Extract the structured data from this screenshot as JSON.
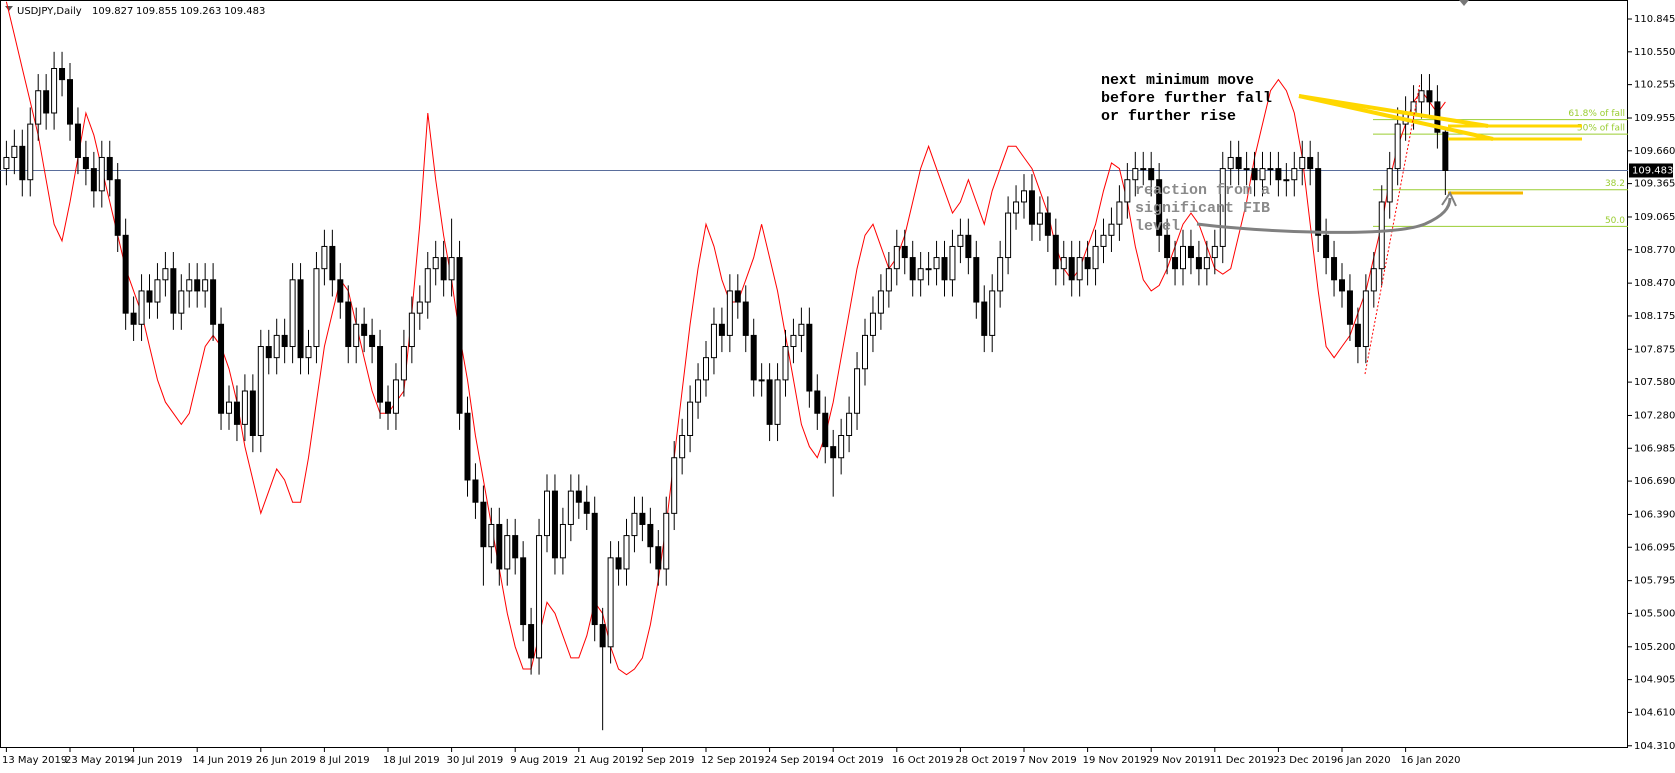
{
  "chart_data": {
    "type": "candlestick",
    "title": "USDJPY,Daily",
    "categories": [
      "13 May 2019",
      null,
      null,
      null,
      null,
      null,
      null,
      null,
      "23 May 2019",
      null,
      null,
      null,
      null,
      null,
      null,
      null,
      "4 Jun 2019",
      null,
      null,
      null,
      null,
      null,
      null,
      null,
      "14 Jun 2019",
      null,
      null,
      null,
      null,
      null,
      null,
      null,
      "26 Jun 2019",
      null,
      null,
      null,
      null,
      null,
      null,
      null,
      "8 Jul 2019",
      null,
      null,
      null,
      null,
      null,
      null,
      null,
      "18 Jul 2019",
      null,
      null,
      null,
      null,
      null,
      null,
      null,
      "30 Jul 2019",
      null,
      null,
      null,
      null,
      null,
      null,
      null,
      "9 Aug 2019",
      null,
      null,
      null,
      null,
      null,
      null,
      null,
      "21 Aug 2019",
      null,
      null,
      null,
      null,
      null,
      null,
      null,
      "2 Sep 2019",
      null,
      null,
      null,
      null,
      null,
      null,
      null,
      "12 Sep 2019",
      null,
      null,
      null,
      null,
      null,
      null,
      null,
      "24 Sep 2019",
      null,
      null,
      null,
      null,
      null,
      null,
      null,
      "4 Oct 2019",
      null,
      null,
      null,
      null,
      null,
      null,
      null,
      "16 Oct 2019",
      null,
      null,
      null,
      null,
      null,
      null,
      null,
      "28 Oct 2019",
      null,
      null,
      null,
      null,
      null,
      null,
      null,
      "7 Nov 2019",
      null,
      null,
      null,
      null,
      null,
      null,
      null,
      "19 Nov 2019",
      null,
      null,
      null,
      null,
      null,
      null,
      null,
      "29 Nov 2019",
      null,
      null,
      null,
      null,
      null,
      null,
      null,
      "11 Dec 2019",
      null,
      null,
      null,
      null,
      null,
      null,
      null,
      "23 Dec 2019",
      null,
      null,
      null,
      null,
      null,
      null,
      null,
      "6 Jan 2020",
      null,
      null,
      null,
      null,
      null,
      null,
      null,
      "16 Jan 2020",
      null,
      null,
      null,
      null,
      null
    ],
    "open": [
      109.5,
      109.6,
      109.7,
      109.4,
      109.9,
      110.2,
      110.0,
      110.4,
      110.3,
      109.9,
      109.6,
      109.5,
      109.3,
      109.6,
      109.4,
      108.9,
      108.2,
      108.1,
      108.4,
      108.3,
      108.5,
      108.6,
      108.2,
      108.4,
      108.5,
      108.4,
      108.5,
      108.1,
      107.3,
      107.4,
      107.2,
      107.5,
      107.1,
      107.9,
      107.8,
      108.0,
      107.9,
      108.5,
      107.8,
      107.9,
      108.6,
      108.8,
      108.5,
      108.3,
      107.9,
      108.1,
      108.0,
      107.9,
      107.4,
      107.3,
      107.6,
      107.9,
      108.2,
      108.3,
      108.6,
      108.7,
      108.5,
      108.7,
      107.3,
      106.7,
      106.5,
      106.1,
      106.3,
      105.9,
      106.2,
      106.0,
      105.4,
      105.1,
      106.2,
      106.6,
      106.0,
      106.3,
      106.6,
      106.5,
      106.4,
      105.4,
      105.2,
      106.0,
      105.9,
      106.2,
      106.4,
      106.3,
      106.1,
      105.9,
      106.4,
      106.9,
      107.1,
      107.4,
      107.6,
      107.8,
      108.1,
      108.0,
      108.4,
      108.3,
      108.0,
      107.6,
      107.6,
      107.2,
      107.6,
      107.9,
      108.0,
      108.1,
      107.5,
      107.3,
      107.0,
      106.9,
      107.1,
      107.3,
      107.7,
      108.0,
      108.2,
      108.4,
      108.6,
      108.8,
      108.7,
      108.5,
      108.6,
      108.6,
      108.7,
      108.5,
      108.8,
      108.9,
      108.7,
      108.3,
      108.0,
      108.4,
      108.7,
      109.1,
      109.2,
      109.3,
      109.0,
      109.1,
      108.9,
      108.6,
      108.7,
      108.5,
      108.7,
      108.6,
      108.8,
      108.9,
      109.0,
      109.2,
      109.4,
      109.5,
      109.5,
      109.4,
      108.9,
      108.7,
      108.6,
      108.8,
      108.7,
      108.6,
      108.7,
      108.8,
      109.5,
      109.6,
      109.5,
      109.5,
      109.4,
      109.5,
      109.5,
      109.4,
      109.4,
      109.5,
      109.6,
      109.5,
      108.9,
      108.7,
      108.5,
      108.4,
      108.1,
      107.9,
      108.4,
      108.6,
      109.2,
      109.5,
      109.9,
      110.0,
      110.1,
      110.2,
      110.1,
      109.827
    ],
    "high": [
      109.75,
      109.85,
      109.85,
      110.05,
      110.35,
      110.35,
      110.55,
      110.55,
      110.45,
      110.05,
      109.75,
      109.65,
      109.75,
      109.75,
      109.55,
      109.05,
      108.35,
      108.55,
      108.55,
      108.65,
      108.75,
      108.75,
      108.55,
      108.65,
      108.65,
      108.65,
      108.65,
      108.25,
      107.55,
      107.55,
      107.65,
      107.65,
      108.05,
      108.05,
      108.15,
      108.15,
      108.65,
      108.65,
      108.05,
      108.75,
      108.95,
      108.95,
      108.65,
      108.45,
      108.25,
      108.25,
      108.15,
      108.05,
      107.55,
      107.75,
      108.05,
      108.35,
      108.45,
      108.75,
      108.85,
      108.85,
      109.05,
      108.85,
      107.45,
      106.85,
      106.65,
      106.45,
      106.45,
      106.35,
      106.35,
      106.15,
      105.55,
      106.35,
      106.75,
      106.75,
      106.45,
      106.75,
      106.75,
      106.65,
      106.55,
      105.55,
      106.15,
      106.15,
      106.35,
      106.55,
      106.55,
      106.45,
      106.25,
      106.55,
      107.05,
      107.25,
      107.55,
      107.75,
      107.95,
      108.25,
      108.25,
      108.55,
      108.55,
      108.45,
      108.15,
      107.75,
      107.75,
      107.75,
      108.05,
      108.15,
      108.25,
      108.25,
      107.65,
      107.45,
      107.15,
      107.25,
      107.45,
      107.85,
      108.15,
      108.35,
      108.55,
      108.75,
      108.95,
      108.95,
      108.85,
      108.75,
      108.75,
      108.85,
      108.85,
      108.95,
      109.05,
      109.05,
      108.85,
      108.45,
      108.55,
      108.85,
      109.25,
      109.35,
      109.45,
      109.45,
      109.25,
      109.25,
      109.05,
      108.85,
      108.85,
      108.85,
      108.85,
      108.95,
      109.05,
      109.15,
      109.35,
      109.55,
      109.65,
      109.65,
      109.65,
      109.55,
      109.05,
      108.85,
      108.95,
      108.95,
      108.85,
      108.85,
      108.95,
      109.65,
      109.75,
      109.75,
      109.65,
      109.65,
      109.65,
      109.65,
      109.65,
      109.55,
      109.65,
      109.75,
      109.75,
      109.65,
      109.05,
      108.85,
      108.65,
      108.55,
      108.25,
      108.55,
      108.75,
      109.35,
      109.65,
      110.05,
      110.15,
      110.25,
      110.35,
      110.35,
      110.25,
      109.855
    ],
    "low": [
      109.35,
      109.45,
      109.25,
      109.25,
      109.75,
      109.85,
      109.85,
      110.15,
      109.75,
      109.45,
      109.35,
      109.15,
      109.15,
      109.25,
      108.75,
      108.05,
      107.95,
      107.95,
      108.15,
      108.15,
      108.35,
      108.05,
      108.05,
      108.25,
      108.25,
      108.25,
      107.95,
      107.15,
      107.15,
      107.05,
      107.05,
      106.95,
      106.95,
      107.65,
      107.65,
      107.75,
      107.75,
      107.65,
      107.65,
      107.75,
      108.45,
      108.35,
      108.15,
      107.75,
      107.75,
      107.85,
      107.75,
      107.25,
      107.15,
      107.15,
      107.45,
      107.75,
      108.05,
      108.15,
      108.45,
      108.35,
      108.35,
      107.15,
      106.55,
      106.35,
      105.75,
      105.95,
      105.75,
      105.75,
      105.85,
      105.25,
      104.95,
      104.95,
      106.05,
      105.85,
      105.85,
      106.15,
      106.35,
      106.25,
      105.25,
      104.45,
      105.05,
      105.75,
      105.75,
      106.05,
      106.15,
      105.95,
      105.75,
      105.75,
      106.25,
      106.75,
      106.95,
      107.25,
      107.45,
      107.65,
      107.85,
      107.85,
      108.15,
      107.85,
      107.45,
      107.45,
      107.05,
      107.05,
      107.45,
      107.75,
      107.85,
      107.35,
      107.15,
      106.85,
      106.55,
      106.75,
      106.95,
      107.15,
      107.55,
      107.85,
      108.05,
      108.25,
      108.45,
      108.55,
      108.35,
      108.35,
      108.45,
      108.45,
      108.35,
      108.35,
      108.65,
      108.55,
      108.15,
      107.85,
      107.85,
      108.25,
      108.55,
      108.95,
      109.05,
      108.85,
      108.85,
      108.75,
      108.45,
      108.45,
      108.35,
      108.35,
      108.45,
      108.45,
      108.65,
      108.75,
      108.85,
      109.05,
      109.25,
      109.35,
      109.25,
      108.75,
      108.55,
      108.45,
      108.45,
      108.55,
      108.45,
      108.45,
      108.55,
      108.65,
      109.35,
      109.35,
      109.35,
      109.25,
      109.25,
      109.35,
      109.25,
      109.25,
      109.25,
      109.35,
      109.35,
      108.75,
      108.55,
      108.35,
      108.25,
      107.95,
      107.75,
      107.75,
      108.25,
      108.45,
      109.05,
      109.35,
      109.75,
      109.85,
      109.95,
      109.95,
      109.68,
      109.263
    ],
    "close": [
      109.6,
      109.7,
      109.4,
      109.9,
      110.2,
      110.0,
      110.4,
      110.3,
      109.9,
      109.6,
      109.5,
      109.3,
      109.6,
      109.4,
      108.9,
      108.2,
      108.1,
      108.4,
      108.3,
      108.5,
      108.6,
      108.2,
      108.4,
      108.5,
      108.4,
      108.5,
      108.1,
      107.3,
      107.4,
      107.2,
      107.5,
      107.1,
      107.9,
      107.8,
      108.0,
      107.9,
      108.5,
      107.8,
      107.9,
      108.6,
      108.8,
      108.5,
      108.3,
      107.9,
      108.1,
      108.0,
      107.9,
      107.4,
      107.3,
      107.6,
      107.9,
      108.2,
      108.3,
      108.6,
      108.7,
      108.5,
      108.7,
      107.3,
      106.7,
      106.5,
      106.1,
      106.3,
      105.9,
      106.2,
      106.0,
      105.4,
      105.1,
      106.2,
      106.6,
      106.0,
      106.3,
      106.6,
      106.5,
      106.4,
      105.4,
      105.2,
      106.0,
      105.9,
      106.2,
      106.4,
      106.3,
      106.1,
      105.9,
      106.4,
      106.9,
      107.1,
      107.4,
      107.6,
      107.8,
      108.1,
      108.0,
      108.4,
      108.3,
      108.0,
      107.6,
      107.6,
      107.2,
      107.6,
      107.9,
      108.0,
      108.1,
      107.5,
      107.3,
      107.0,
      106.9,
      107.1,
      107.3,
      107.7,
      108.0,
      108.2,
      108.4,
      108.6,
      108.8,
      108.7,
      108.5,
      108.6,
      108.6,
      108.7,
      108.5,
      108.8,
      108.9,
      108.7,
      108.3,
      108.0,
      108.4,
      108.7,
      109.1,
      109.2,
      109.3,
      109.0,
      109.1,
      108.9,
      108.6,
      108.7,
      108.5,
      108.7,
      108.6,
      108.8,
      108.9,
      109.0,
      109.2,
      109.4,
      109.5,
      109.5,
      109.4,
      108.9,
      108.7,
      108.6,
      108.8,
      108.7,
      108.6,
      108.7,
      108.8,
      109.5,
      109.6,
      109.5,
      109.5,
      109.4,
      109.5,
      109.5,
      109.4,
      109.4,
      109.5,
      109.6,
      109.5,
      108.9,
      108.7,
      108.5,
      108.4,
      108.1,
      107.9,
      108.4,
      108.6,
      109.2,
      109.5,
      109.9,
      110.0,
      110.1,
      110.2,
      110.1,
      109.827,
      109.483
    ],
    "up_color": "#ffffff",
    "down_color": "#000000",
    "wick_color": "#000000",
    "series": [
      {
        "color": "#ff0000",
        "values": [
          111.0,
          110.7,
          110.4,
          110.1,
          109.8,
          109.4,
          109.0,
          108.85,
          109.2,
          109.6,
          110.0,
          109.8,
          109.5,
          109.2,
          108.9,
          108.6,
          108.4,
          108.2,
          107.9,
          107.6,
          107.4,
          107.3,
          107.2,
          107.3,
          107.6,
          107.9,
          108.0,
          107.9,
          107.7,
          107.4,
          107.0,
          106.7,
          106.4,
          106.6,
          106.8,
          106.7,
          106.5,
          106.5,
          106.9,
          107.4,
          107.9,
          108.2,
          108.5,
          108.4,
          108.1,
          107.8,
          107.5,
          107.3,
          107.3,
          107.4,
          107.5,
          108.2,
          109.0,
          110.0,
          109.4,
          108.9,
          108.5,
          108.0,
          107.6,
          107.1,
          106.7,
          106.3,
          105.9,
          105.5,
          105.2,
          105.0,
          105.0,
          105.3,
          105.6,
          105.5,
          105.3,
          105.1,
          105.1,
          105.3,
          105.6,
          105.5,
          105.2,
          105.0,
          104.95,
          105.0,
          105.1,
          105.4,
          105.8,
          106.3,
          106.9,
          107.5,
          108.1,
          108.6,
          109.0,
          108.8,
          108.5,
          108.3,
          108.3,
          108.5,
          108.7,
          109.0,
          108.7,
          108.4,
          108.0,
          107.6,
          107.2,
          107.0,
          106.9,
          107.1,
          107.4,
          107.8,
          108.2,
          108.6,
          108.9,
          109.0,
          108.8,
          108.6,
          108.7,
          108.9,
          109.2,
          109.5,
          109.7,
          109.5,
          109.3,
          109.1,
          109.2,
          109.4,
          109.2,
          109.0,
          109.3,
          109.5,
          109.7,
          109.7,
          109.6,
          109.5,
          109.3,
          109.1,
          108.8,
          108.6,
          108.5,
          108.6,
          108.8,
          109.0,
          109.3,
          109.55,
          109.5,
          109.2,
          108.8,
          108.5,
          108.4,
          108.45,
          108.6,
          108.8,
          109.0,
          109.1,
          109.0,
          108.8,
          108.6,
          108.55,
          108.6,
          108.9,
          109.2,
          109.6,
          109.9,
          110.2,
          110.3,
          110.2,
          110.0,
          109.6,
          109.0,
          108.4,
          107.9,
          107.8,
          107.9,
          108.0,
          108.2,
          108.4,
          108.7,
          109.0,
          109.4,
          109.7,
          109.9,
          110.1,
          110.2,
          110.1,
          110.0,
          110.1
        ]
      }
    ],
    "ylim": [
      104.29,
      110.98
    ],
    "yticks": [
      110.845,
      {
        "value": 110.55,
        "label": "110.550"
      },
      110.255,
      109.955,
      {
        "value": 109.66,
        "label": "109.660"
      },
      109.365,
      109.065,
      {
        "value": 108.77,
        "label": "108.770"
      },
      {
        "value": 108.47,
        "label": "108.470"
      },
      108.175,
      107.875,
      {
        "value": 107.58,
        "label": "107.580"
      },
      {
        "value": 107.28,
        "label": "107.280"
      },
      106.985,
      {
        "value": 106.69,
        "label": "106.690"
      },
      {
        "value": 106.39,
        "label": "106.390"
      },
      106.095,
      105.795,
      {
        "value": 105.5,
        "label": "105.500"
      },
      {
        "value": 105.2,
        "label": "105.200"
      },
      104.905,
      {
        "value": 104.61,
        "label": "104.610"
      },
      {
        "value": 104.31,
        "label": "104.310"
      }
    ],
    "price_line_color": "#5a6e9c",
    "fib_color": "#9acd32",
    "fib_levels": [
      {
        "label": "61.8% of fall",
        "value": 109.94
      },
      {
        "label": "50% of fall",
        "value": 109.81
      },
      {
        "label": "38.2",
        "value": 109.31
      },
      {
        "label": "50.0",
        "value": 108.98
      }
    ],
    "annotations": [
      [
        "next minimum move",
        "before further fall",
        "or further rise"
      ],
      [
        "reaction from a",
        "significant FIB",
        "level"
      ]
    ]
  }
}
